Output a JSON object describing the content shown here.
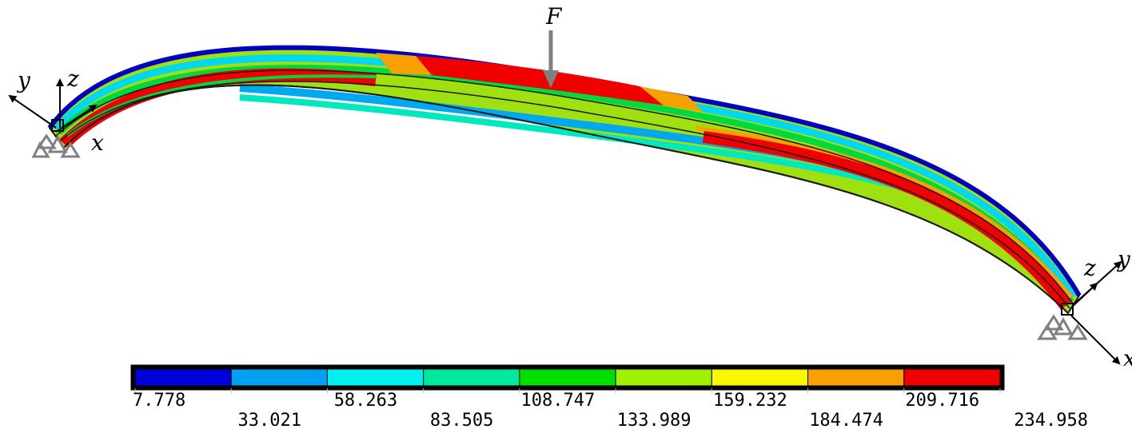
{
  "load": {
    "label": "F"
  },
  "supports": [
    {
      "axes": {
        "y": "y",
        "z": "z",
        "x": "x"
      }
    },
    {
      "axes": {
        "y": "y",
        "z": "z",
        "x": "x"
      }
    }
  ],
  "legend": {
    "colors": [
      "#0000d8",
      "#00a0f0",
      "#00f0f0",
      "#00e8a0",
      "#00e000",
      "#a0f000",
      "#f8f800",
      "#f8a000",
      "#f00000"
    ],
    "ticks": [
      "7.778",
      "33.021",
      "58.263",
      "83.505",
      "108.747",
      "133.989",
      "159.232",
      "184.474",
      "209.716",
      "234.958"
    ]
  }
}
